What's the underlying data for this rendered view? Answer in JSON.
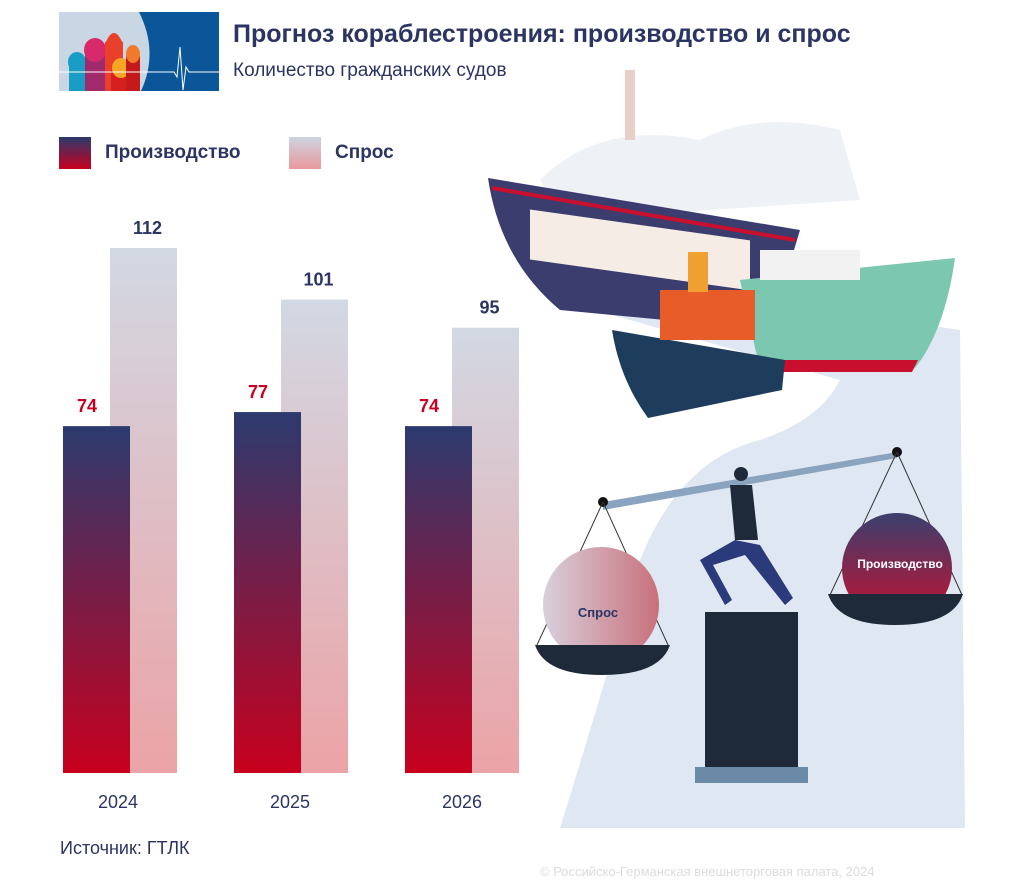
{
  "header": {
    "title": "Прогноз кораблестроения: производство и спрос",
    "subtitle": "Количество гражданских судов"
  },
  "legend": [
    {
      "label": "Производство"
    },
    {
      "label": "Спрос"
    }
  ],
  "chart_data": {
    "type": "bar",
    "title": "Прогноз кораблестроения: производство и спрос",
    "subtitle": "Количество гражданских судов",
    "categories": [
      "2024",
      "2025",
      "2026"
    ],
    "series": [
      {
        "name": "Производство",
        "values": [
          74,
          77,
          74
        ],
        "color_top": "#2b3a6e",
        "color_bottom": "#c8001e",
        "label_color": "#c8001e"
      },
      {
        "name": "Спрос",
        "values": [
          112,
          101,
          95
        ],
        "color_top": "#cdd4e0",
        "color_bottom": "#e9999c",
        "label_color": "#2b3463"
      }
    ],
    "ylim": [
      0,
      112
    ],
    "grid": false,
    "legend_position": "top-left"
  },
  "illustration": {
    "scale_left": "Спрос",
    "scale_right": "Производство"
  },
  "footer": {
    "source": "Источник: ГТЛК",
    "copyright": "© Российско-Германская внешнеторговая палата, 2024"
  }
}
